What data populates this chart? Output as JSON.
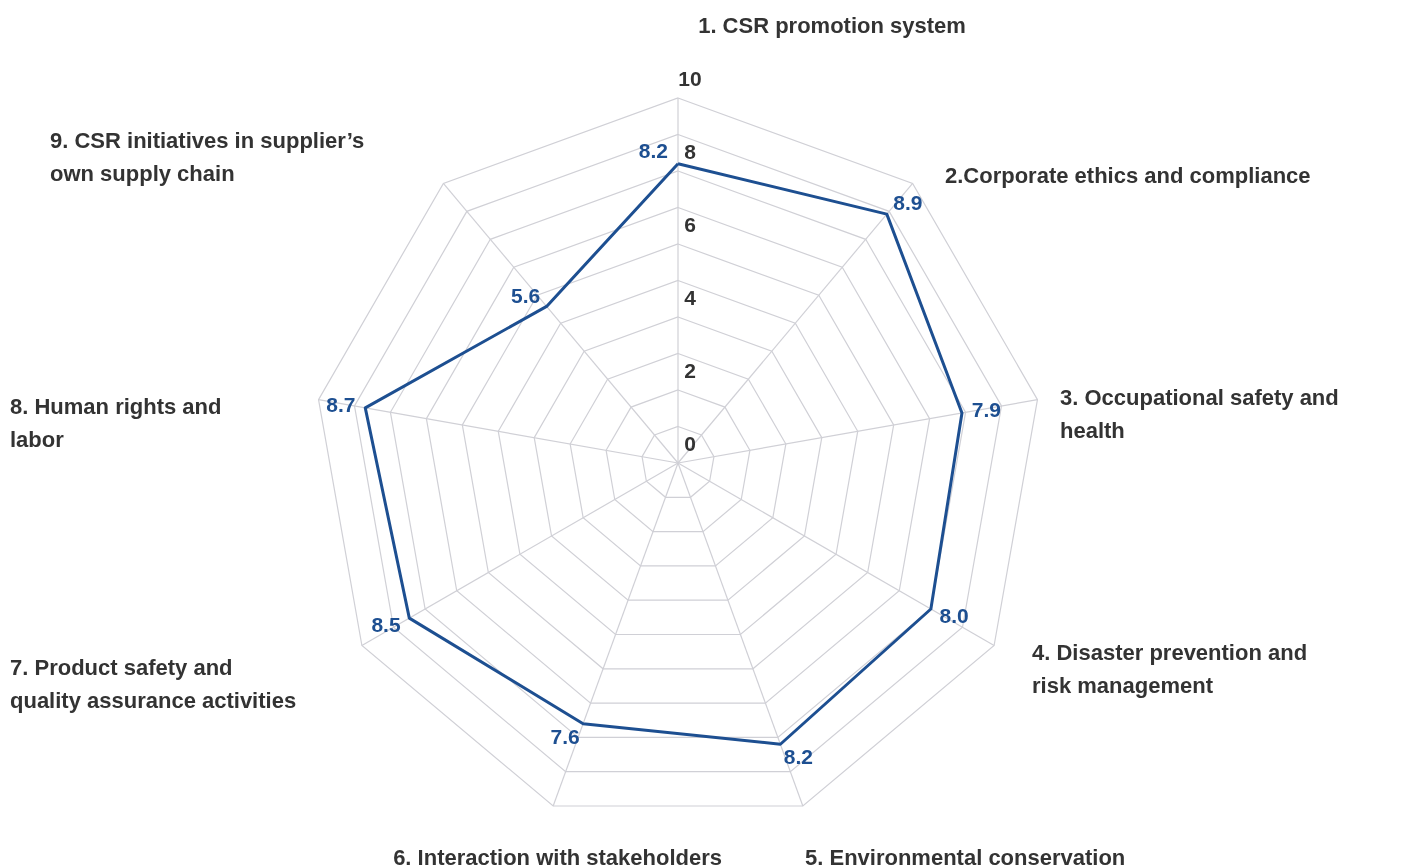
{
  "chart_data": {
    "type": "radar",
    "categories": [
      "1. CSR promotion system",
      "2.Corporate ethics and compliance",
      "3. Occupational safety and health",
      "4. Disaster prevention and risk management",
      "5. Environmental conservation",
      "6. Interaction with stakeholders",
      "7. Product safety and quality assurance activities",
      "8. Human rights and labor",
      "9. CSR initiatives in supplier’s own supply chain"
    ],
    "series": [
      {
        "color": "#1d4f91",
        "values": [
          8.2,
          8.9,
          7.9,
          8.0,
          8.2,
          7.6,
          8.5,
          8.7,
          5.6
        ],
        "value_labels": [
          "8.2",
          "8.9",
          "7.9",
          "8.0",
          "8.2",
          "7.6",
          "8.5",
          "8.7",
          "5.6"
        ]
      }
    ],
    "ylim": [
      0,
      10
    ],
    "yticks": [
      0,
      2,
      4,
      6,
      8,
      10
    ],
    "grid": true
  }
}
